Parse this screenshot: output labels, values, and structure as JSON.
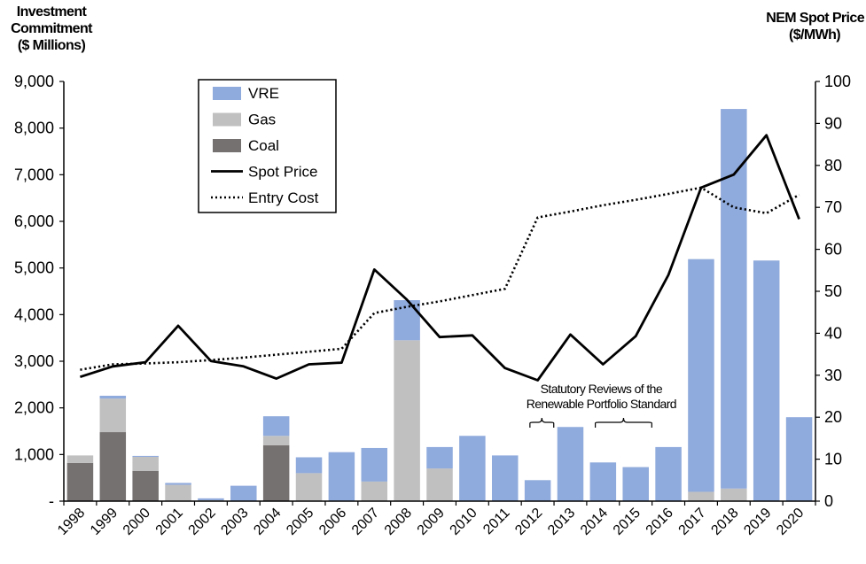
{
  "chart_data": {
    "type": "bar",
    "title": "",
    "ylabel": "Investment Commitment ($ Millions)",
    "ylabel_line1": "Investment",
    "ylabel_line2": "Commitment",
    "ylabel_line3": "($ Millions)",
    "y2label": "NEM Spot Price ($/MWh)",
    "y2label_line1": "NEM Spot Price",
    "y2label_line2": "($/MWh)",
    "ylim": [
      0,
      9000
    ],
    "y2lim": [
      0,
      100
    ],
    "yticks": [
      "-",
      "1,000",
      "2,000",
      "3,000",
      "4,000",
      "5,000",
      "6,000",
      "7,000",
      "8,000",
      "9,000"
    ],
    "y2ticks": [
      "0",
      "10",
      "20",
      "30",
      "40",
      "50",
      "60",
      "70",
      "80",
      "90",
      "100"
    ],
    "categories": [
      "1998",
      "1999",
      "2000",
      "2001",
      "2002",
      "2003",
      "2004",
      "2005",
      "2006",
      "2007",
      "2008",
      "2009",
      "2010",
      "2011",
      "2012",
      "2013",
      "2014",
      "2015",
      "2016",
      "2017",
      "2018",
      "2019",
      "2020"
    ],
    "stacked_series": [
      {
        "name": "Coal",
        "color": "#767171",
        "values": [
          820,
          1480,
          650,
          0,
          0,
          0,
          1200,
          0,
          0,
          0,
          0,
          0,
          0,
          0,
          0,
          0,
          0,
          0,
          0,
          0,
          0,
          0,
          0
        ]
      },
      {
        "name": "Gas",
        "color": "#c0c0c0",
        "values": [
          160,
          720,
          300,
          350,
          20,
          0,
          200,
          600,
          0,
          420,
          3450,
          700,
          0,
          0,
          0,
          0,
          0,
          0,
          0,
          200,
          270,
          0,
          0
        ]
      },
      {
        "name": "VRE",
        "color": "#8faadc",
        "values": [
          0,
          60,
          20,
          40,
          40,
          330,
          420,
          340,
          1050,
          720,
          860,
          460,
          1400,
          980,
          450,
          1590,
          830,
          730,
          1160,
          4990,
          8140,
          5160,
          1800
        ]
      }
    ],
    "line_series": [
      {
        "name": "Spot Price",
        "color": "#000000",
        "style": "solid",
        "axis": "right",
        "values": [
          29.6,
          32.1,
          33.1,
          41.8,
          33.4,
          32.1,
          29.2,
          32.6,
          33.0,
          55.2,
          48.0,
          39.1,
          39.5,
          31.7,
          28.8,
          39.7,
          32.6,
          39.3,
          53.9,
          74.7,
          77.8,
          87.2,
          67.2
        ]
      },
      {
        "name": "Entry Cost",
        "color": "#000000",
        "style": "dotted",
        "axis": "right",
        "values": [
          31.3,
          32.6,
          32.8,
          33.1,
          33.6,
          34.2,
          34.9,
          35.6,
          36.3,
          44.8,
          46.3,
          47.6,
          49.1,
          50.6,
          67.6,
          69.0,
          70.5,
          71.8,
          73.2,
          74.7,
          70.0,
          68.6,
          73.0
        ]
      }
    ],
    "legend": {
      "placement": "top-left",
      "entries": [
        {
          "name": "VRE",
          "kind": "swatch",
          "color": "#8faadc"
        },
        {
          "name": "Gas",
          "kind": "swatch",
          "color": "#c0c0c0"
        },
        {
          "name": "Coal",
          "kind": "swatch",
          "color": "#767171"
        },
        {
          "name": "Spot Price",
          "kind": "solid-line",
          "color": "#000000"
        },
        {
          "name": "Entry Cost",
          "kind": "dotted-line",
          "color": "#000000"
        }
      ]
    },
    "annotation": {
      "line1": "Statutory Reviews of the",
      "line2": "Renewable Portfolio Standard",
      "spans": [
        [
          2012,
          2013
        ],
        [
          2014,
          2016
        ]
      ]
    },
    "grid": false
  }
}
